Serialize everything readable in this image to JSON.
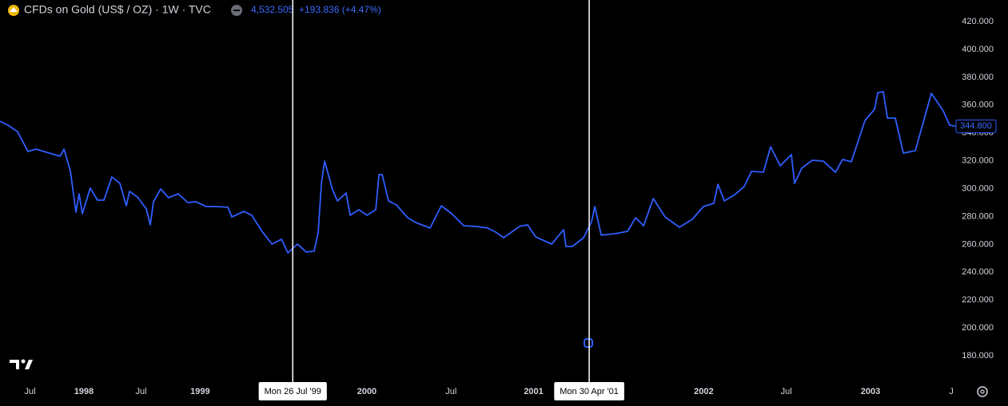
{
  "chart_data": {
    "type": "line",
    "title": "CFDs on Gold (US$ / OZ) · 1W · TVC",
    "price": "4,532.505",
    "change": "+193.836 (+4.47%)",
    "grid": false,
    "xlim": [
      1997.822,
      2003.493
    ],
    "ylim": [
      163.4,
      435.5
    ],
    "yticks": [
      {
        "value": 180,
        "label": "180.000"
      },
      {
        "value": 200,
        "label": "200.000"
      },
      {
        "value": 220,
        "label": "220.000"
      },
      {
        "value": 240,
        "label": "240.000"
      },
      {
        "value": 260,
        "label": "260.000"
      },
      {
        "value": 280,
        "label": "280.000"
      },
      {
        "value": 300,
        "label": "300.000"
      },
      {
        "value": 320,
        "label": "320.000"
      },
      {
        "value": 340,
        "label": "340.000"
      },
      {
        "value": 360,
        "label": "360.000"
      },
      {
        "value": 380,
        "label": "380.000"
      },
      {
        "value": 400,
        "label": "400.000"
      },
      {
        "value": 420,
        "label": "420.000"
      }
    ],
    "xticks": [
      {
        "value": 1998.0,
        "label": "Jul"
      },
      {
        "value": 1998.32,
        "label": "1998"
      },
      {
        "value": 1998.66,
        "label": "Jul"
      },
      {
        "value": 1999.01,
        "label": "1999"
      },
      {
        "value": 2000.0,
        "label": "2000"
      },
      {
        "value": 2000.5,
        "label": "Jul"
      },
      {
        "value": 2000.99,
        "label": "2001"
      },
      {
        "value": 2002.0,
        "label": "2002"
      },
      {
        "value": 2002.49,
        "label": "Jul"
      },
      {
        "value": 2002.99,
        "label": "2003"
      },
      {
        "value": 2003.47,
        "label": "J"
      }
    ],
    "markers": [
      {
        "x": 1999.56,
        "label": "Mon 26 Jul '99"
      },
      {
        "x": 2001.32,
        "label": "Mon 30 Apr '01"
      }
    ],
    "last_label": {
      "value": 344.8,
      "label": "344.800"
    },
    "series": [
      {
        "name": "CFDs on Gold",
        "color": "#2f5eff",
        "x": [
          1997.822,
          1997.869,
          1997.926,
          1997.988,
          1998.036,
          1998.116,
          1998.178,
          1998.202,
          1998.24,
          1998.273,
          1998.292,
          1998.311,
          1998.358,
          1998.401,
          1998.439,
          1998.486,
          1998.534,
          1998.572,
          1998.591,
          1998.638,
          1998.691,
          1998.714,
          1998.733,
          1998.776,
          1998.823,
          1998.88,
          1998.937,
          1998.985,
          1999.046,
          1999.103,
          1999.175,
          1999.198,
          1999.27,
          1999.317,
          1999.374,
          1999.436,
          1999.493,
          1999.531,
          1999.588,
          1999.64,
          1999.687,
          1999.711,
          1999.73,
          1999.749,
          1999.796,
          1999.825,
          1999.877,
          1999.901,
          1999.953,
          2000.0,
          2000.053,
          2000.072,
          2000.091,
          2000.129,
          2000.176,
          2000.242,
          2000.29,
          2000.375,
          2000.442,
          2000.504,
          2000.575,
          2000.646,
          2000.717,
          2000.765,
          2000.812,
          2000.907,
          2000.954,
          2001.002,
          2001.097,
          2001.168,
          2001.182,
          2001.22,
          2001.287,
          2001.334,
          2001.353,
          2001.391,
          2001.476,
          2001.548,
          2001.595,
          2001.643,
          2001.7,
          2001.771,
          2001.856,
          2001.932,
          2001.998,
          2002.06,
          2002.084,
          2002.122,
          2002.179,
          2002.24,
          2002.283,
          2002.354,
          2002.397,
          2002.454,
          2002.52,
          2002.539,
          2002.582,
          2002.644,
          2002.71,
          2002.782,
          2002.824,
          2002.876,
          2002.957,
          2003.014,
          2003.033,
          2003.066,
          2003.09,
          2003.137,
          2003.185,
          2003.256,
          2003.351,
          2003.422,
          2003.46,
          2003.493
        ],
        "values": [
          348.4,
          345.6,
          341.0,
          326.7,
          328.4,
          325.5,
          323.3,
          328.4,
          312.4,
          283.2,
          296.3,
          282.0,
          300.4,
          291.8,
          291.8,
          308.4,
          303.8,
          287.7,
          298.1,
          294.0,
          285.5,
          274.0,
          290.6,
          299.8,
          293.5,
          296.3,
          290.0,
          290.6,
          287.2,
          287.2,
          286.6,
          279.7,
          283.7,
          280.9,
          270.0,
          260.2,
          263.7,
          253.9,
          260.2,
          254.5,
          255.1,
          268.8,
          303.8,
          319.8,
          299.2,
          291.2,
          296.9,
          280.9,
          284.9,
          280.9,
          284.9,
          310.1,
          310.1,
          291.2,
          288.3,
          279.2,
          275.7,
          271.7,
          287.7,
          282.0,
          273.4,
          272.9,
          271.7,
          268.8,
          264.8,
          272.9,
          274.0,
          265.4,
          260.2,
          270.6,
          258.5,
          258.5,
          264.8,
          276.3,
          287.2,
          266.6,
          267.7,
          269.4,
          279.2,
          273.4,
          292.9,
          279.7,
          272.3,
          278.0,
          287.2,
          289.5,
          303.2,
          291.2,
          295.2,
          301.5,
          312.4,
          311.8,
          330.1,
          316.4,
          324.4,
          303.8,
          314.7,
          320.4,
          319.8,
          311.8,
          321.0,
          319.3,
          349.0,
          357.0,
          369.0,
          369.6,
          350.7,
          350.7,
          325.5,
          327.3,
          368.5,
          355.9,
          345.6,
          344.8
        ]
      }
    ]
  }
}
